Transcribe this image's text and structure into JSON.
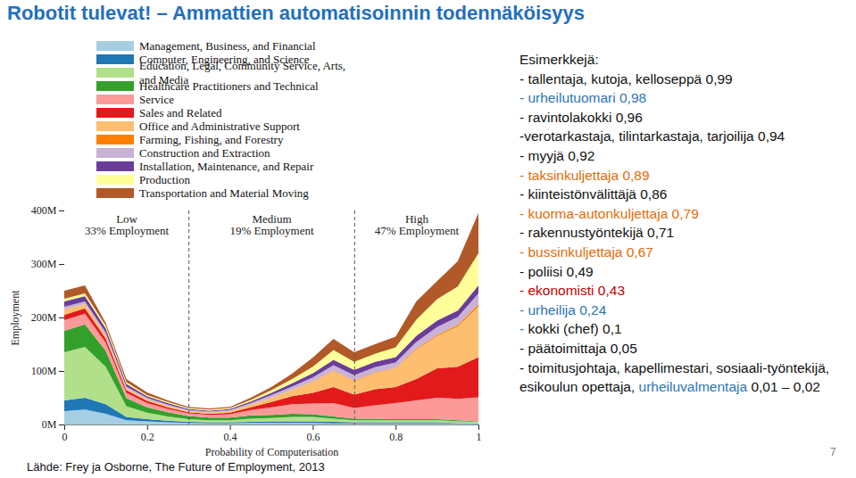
{
  "slide": {
    "title": "Robotit tulevat! – Ammattien automatisoinnin todennäköisyys",
    "examples_title": "Esimerkkejä:",
    "examples": [
      [
        {
          "text": "- tallentaja, kutoja, kelloseppä 0,99",
          "color": "#111111"
        }
      ],
      [
        {
          "text": "- urheilutuomari 0,98",
          "color": "#2e75b6"
        }
      ],
      [
        {
          "text": "- ravintolakokki 0,96",
          "color": "#111111"
        }
      ],
      [
        {
          "text": "-verotarkastaja, tilintarkastaja, tarjoilija 0,94",
          "color": "#111111"
        }
      ],
      [
        {
          "text": "- myyjä 0,92",
          "color": "#111111"
        }
      ],
      [
        {
          "text": "- taksinkuljettaja 0,89",
          "color": "#e36c09"
        }
      ],
      [
        {
          "text": "- kiinteistönvälittäjä 0,86",
          "color": "#111111"
        }
      ],
      [
        {
          "text": "- kuorma-autonkuljettaja 0,79",
          "color": "#e36c09"
        }
      ],
      [
        {
          "text": "- rakennustyöntekijä 0,71",
          "color": "#111111"
        }
      ],
      [
        {
          "text": "- bussinkuljettaja 0,67",
          "color": "#e36c09"
        }
      ],
      [
        {
          "text": "- poliisi 0,49",
          "color": "#111111"
        }
      ],
      [
        {
          "text": "- ekonomisti 0,43",
          "color": "#c00000"
        }
      ],
      [
        {
          "text": "- urheilija 0,24",
          "color": "#2e75b6"
        }
      ],
      [
        {
          "text": "- ",
          "color": "#2e75b6"
        },
        {
          "text": "kokki (chef) 0,1",
          "color": "#111111"
        }
      ],
      [
        {
          "text": "- päätoimittaja 0,05",
          "color": "#111111"
        }
      ],
      [
        {
          "text": "- toimitusjohtaja, kapellimestari, sosiaali-työntekijä, esikoulun opettaja, ",
          "color": "#111111"
        },
        {
          "text": "urheiluvalmentaja",
          "color": "#2e75b6"
        },
        {
          "text": " 0,01 – 0,02",
          "color": "#111111"
        }
      ]
    ],
    "source": "Lähde: Frey ja Osborne, The Future of Employment, 2013",
    "page": 7
  },
  "chart_data": {
    "type": "area",
    "stacked": true,
    "legend": "top",
    "x": [
      0,
      0.05,
      0.1,
      0.15,
      0.2,
      0.25,
      0.3,
      0.35,
      0.4,
      0.45,
      0.5,
      0.55,
      0.6,
      0.65,
      0.7,
      0.75,
      0.8,
      0.85,
      0.9,
      0.95,
      1
    ],
    "xlim": [
      0,
      1
    ],
    "xticks": [
      0,
      0.2,
      0.4,
      0.6,
      0.8,
      1
    ],
    "x_label": "Probability of Computerisation",
    "ylim": [
      0,
      400
    ],
    "yticks": [
      {
        "value": 0,
        "label": "0M"
      },
      {
        "value": 100,
        "label": "100M"
      },
      {
        "value": 200,
        "label": "200M"
      },
      {
        "value": 300,
        "label": "300M"
      },
      {
        "value": 400,
        "label": "400M"
      }
    ],
    "y_label": "Employment",
    "region_boundaries": [
      0.3,
      0.7
    ],
    "regions": [
      {
        "label": "Low",
        "text": "33% Employment"
      },
      {
        "label": "Medium",
        "text": "19% Employment"
      },
      {
        "label": "High",
        "text": "47% Employment"
      }
    ],
    "series": [
      {
        "name": "Management, Business, and Financial",
        "color": "#a6cee3",
        "values": [
          25,
          28,
          20,
          8,
          6,
          4,
          3,
          2,
          2,
          3,
          3,
          3,
          3,
          2,
          2,
          2,
          2,
          2,
          2,
          2,
          1
        ]
      },
      {
        "name": "Computer, Engineering, and Science",
        "color": "#1f78b4",
        "values": [
          20,
          22,
          18,
          6,
          4,
          3,
          2,
          2,
          2,
          2,
          3,
          3,
          3,
          3,
          2,
          2,
          2,
          2,
          2,
          1,
          1
        ]
      },
      {
        "name": "Education, Legal, Community Service, Arts, and Media",
        "color": "#b2df8a",
        "values": [
          90,
          95,
          70,
          20,
          12,
          8,
          5,
          4,
          4,
          6,
          6,
          8,
          8,
          6,
          4,
          4,
          4,
          4,
          4,
          3,
          3
        ]
      },
      {
        "name": "Healthcare Practitioners and Technical",
        "color": "#33a02c",
        "values": [
          40,
          42,
          30,
          15,
          10,
          8,
          6,
          5,
          5,
          6,
          6,
          6,
          5,
          4,
          3,
          3,
          2,
          2,
          2,
          2,
          1
        ]
      },
      {
        "name": "Service",
        "color": "#fb9a99",
        "values": [
          20,
          20,
          15,
          10,
          8,
          6,
          5,
          5,
          6,
          10,
          14,
          18,
          20,
          25,
          20,
          25,
          30,
          35,
          40,
          40,
          45
        ]
      },
      {
        "name": "Sales and Related",
        "color": "#e31a1c",
        "values": [
          10,
          10,
          8,
          5,
          4,
          3,
          2,
          2,
          3,
          5,
          10,
          15,
          20,
          30,
          25,
          30,
          30,
          40,
          55,
          60,
          75
        ]
      },
      {
        "name": "Office and Administrative Support",
        "color": "#fdbf6f",
        "values": [
          10,
          8,
          6,
          4,
          3,
          3,
          2,
          2,
          3,
          5,
          8,
          12,
          20,
          30,
          25,
          30,
          35,
          55,
          60,
          75,
          95
        ]
      },
      {
        "name": "Farming, Fishing, and Forestry",
        "color": "#ff7f00",
        "values": [
          0,
          0,
          0,
          0,
          0,
          0,
          0,
          0,
          0,
          0,
          0,
          0,
          1,
          1,
          1,
          1,
          1,
          2,
          2,
          3,
          4
        ]
      },
      {
        "name": "Construction and Extraction",
        "color": "#cab2d6",
        "values": [
          5,
          5,
          5,
          3,
          3,
          2,
          2,
          2,
          2,
          3,
          5,
          6,
          8,
          10,
          10,
          10,
          10,
          12,
          15,
          15,
          20
        ]
      },
      {
        "name": "Installation, Maintenance, and Repair",
        "color": "#6a3d9a",
        "values": [
          10,
          10,
          8,
          5,
          3,
          3,
          2,
          2,
          2,
          3,
          4,
          6,
          8,
          10,
          10,
          10,
          10,
          12,
          12,
          12,
          15
        ]
      },
      {
        "name": "Production",
        "color": "#ffff99",
        "values": [
          5,
          5,
          5,
          3,
          2,
          2,
          2,
          2,
          2,
          3,
          5,
          8,
          12,
          18,
          15,
          15,
          18,
          30,
          40,
          45,
          60
        ]
      },
      {
        "name": "Transportation and Material Moving",
        "color": "#b15928",
        "values": [
          15,
          15,
          5,
          6,
          5,
          3,
          2,
          2,
          2,
          4,
          6,
          10,
          17,
          21,
          18,
          18,
          20,
          34,
          34,
          47,
          75
        ]
      }
    ]
  }
}
